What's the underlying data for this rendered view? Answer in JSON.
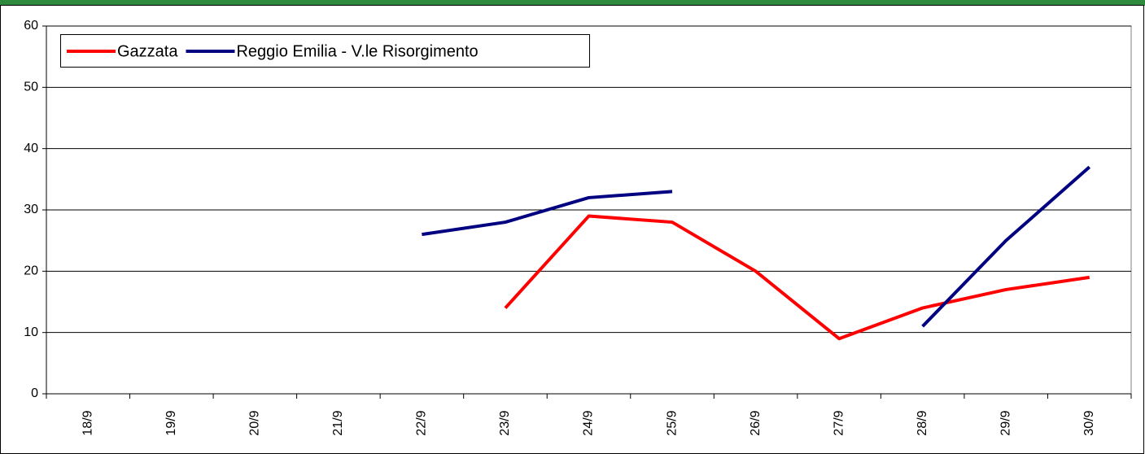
{
  "chart_data": {
    "type": "line",
    "categories": [
      "18/9",
      "19/9",
      "20/9",
      "21/9",
      "22/9",
      "23/9",
      "24/9",
      "25/9",
      "26/9",
      "27/9",
      "28/9",
      "29/9",
      "30/9"
    ],
    "series": [
      {
        "name": "Gazzata",
        "color": "#ff0000",
        "values": [
          null,
          null,
          null,
          null,
          null,
          14,
          29,
          28,
          20,
          9,
          14,
          17,
          19
        ]
      },
      {
        "name": "Reggio Emilia - V.le Risorgimento",
        "color": "#000080",
        "values": [
          null,
          null,
          null,
          null,
          26,
          28,
          32,
          33,
          null,
          null,
          11,
          25,
          37
        ]
      }
    ],
    "ylim": [
      0,
      60
    ],
    "yticks": [
      0,
      10,
      20,
      30,
      40,
      50,
      60
    ],
    "grid": true,
    "legend": "top-left"
  }
}
